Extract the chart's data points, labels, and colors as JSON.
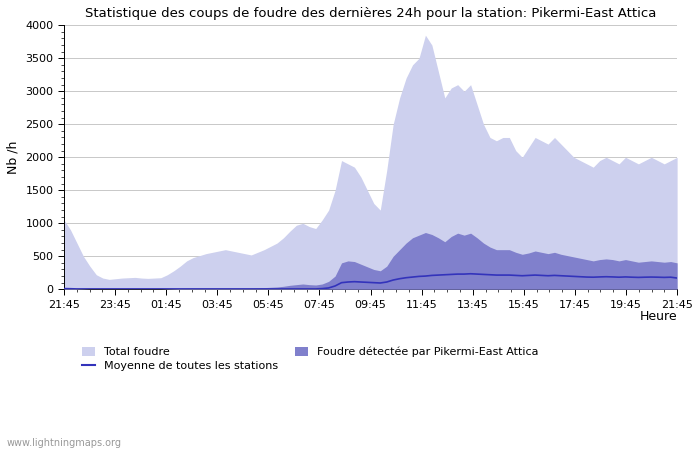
{
  "title": "Statistique des coups de foudre des dernières 24h pour la station: Pikermi-East Attica",
  "xlabel": "Heure",
  "ylabel": "Nb /h",
  "background_color": "#ffffff",
  "grid_color": "#c8c8c8",
  "ylim": [
    0,
    4000
  ],
  "yticks": [
    0,
    500,
    1000,
    1500,
    2000,
    2500,
    3000,
    3500,
    4000
  ],
  "xtick_labels": [
    "21:45",
    "23:45",
    "01:45",
    "03:45",
    "05:45",
    "07:45",
    "09:45",
    "11:45",
    "13:45",
    "15:45",
    "17:45",
    "19:45",
    "21:45"
  ],
  "watermark": "www.lightningmaps.org",
  "color_total": "#cdd0ee",
  "color_detected": "#8080cc",
  "color_mean": "#3333bb",
  "legend_total": "Total foudre",
  "legend_detected": "Foudre détectée par Pikermi-East Attica",
  "legend_mean": "Moyenne de toutes les stations",
  "total_foudre": [
    1050,
    900,
    700,
    500,
    350,
    220,
    170,
    150,
    160,
    170,
    175,
    180,
    170,
    165,
    170,
    175,
    220,
    280,
    350,
    430,
    480,
    510,
    540,
    560,
    580,
    600,
    580,
    560,
    540,
    520,
    560,
    600,
    650,
    700,
    780,
    880,
    970,
    1000,
    950,
    920,
    1050,
    1200,
    1500,
    1950,
    1900,
    1850,
    1700,
    1500,
    1300,
    1200,
    1800,
    2500,
    2900,
    3200,
    3400,
    3500,
    3850,
    3700,
    3300,
    2900,
    3050,
    3100,
    3000,
    3100,
    2800,
    2500,
    2300,
    2250,
    2300,
    2300,
    2100,
    2000,
    2150,
    2300,
    2250,
    2200,
    2300,
    2200,
    2100,
    2000,
    1950,
    1900,
    1850,
    1950,
    2000,
    1950,
    1900,
    2000,
    1950,
    1900,
    1950,
    2000,
    1950,
    1900,
    1950,
    2000
  ],
  "detected_foudre": [
    20,
    15,
    10,
    8,
    5,
    5,
    5,
    5,
    5,
    5,
    5,
    5,
    5,
    5,
    5,
    5,
    8,
    10,
    12,
    15,
    15,
    15,
    15,
    15,
    15,
    15,
    15,
    15,
    15,
    15,
    20,
    25,
    30,
    35,
    45,
    60,
    70,
    80,
    70,
    65,
    80,
    120,
    200,
    400,
    430,
    420,
    380,
    340,
    300,
    280,
    350,
    500,
    600,
    700,
    780,
    820,
    860,
    830,
    780,
    720,
    800,
    850,
    820,
    850,
    780,
    700,
    640,
    600,
    600,
    600,
    560,
    530,
    550,
    580,
    560,
    540,
    560,
    530,
    510,
    490,
    470,
    450,
    430,
    450,
    460,
    450,
    430,
    450,
    430,
    410,
    420,
    430,
    420,
    410,
    420,
    400
  ],
  "mean_line": [
    10,
    8,
    5,
    5,
    5,
    5,
    5,
    5,
    5,
    5,
    5,
    5,
    5,
    5,
    5,
    5,
    5,
    5,
    5,
    5,
    5,
    5,
    5,
    5,
    5,
    5,
    5,
    5,
    5,
    5,
    5,
    5,
    5,
    5,
    5,
    5,
    5,
    5,
    5,
    5,
    10,
    20,
    50,
    100,
    110,
    115,
    110,
    105,
    100,
    95,
    110,
    140,
    160,
    175,
    185,
    195,
    200,
    210,
    215,
    220,
    225,
    230,
    230,
    235,
    230,
    225,
    220,
    215,
    215,
    215,
    210,
    205,
    210,
    215,
    210,
    205,
    210,
    205,
    200,
    195,
    190,
    185,
    183,
    187,
    190,
    187,
    183,
    187,
    183,
    180,
    183,
    185,
    183,
    180,
    183,
    170
  ]
}
